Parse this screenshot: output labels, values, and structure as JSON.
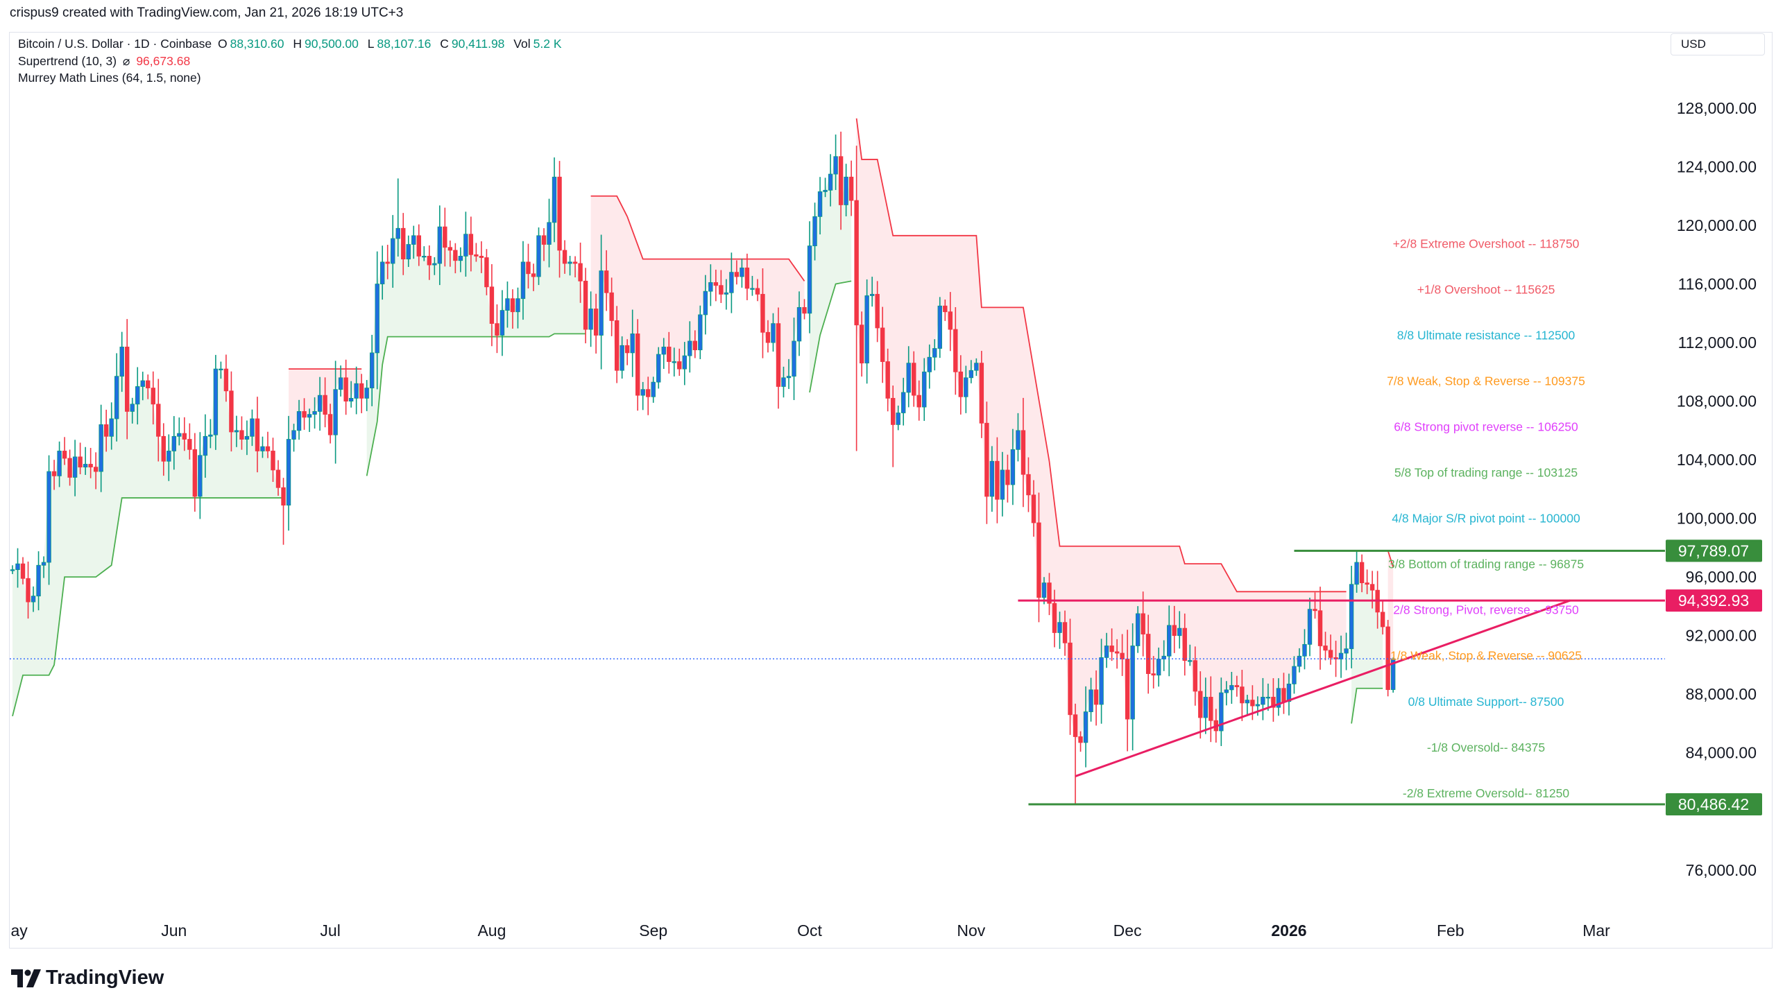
{
  "credit": "crispus9 created with TradingView.com, Jan 21, 2026 18:19 UTC+3",
  "legend": {
    "symbol": "Bitcoin / U.S. Dollar · 1D · Coinbase",
    "o_label": "O",
    "o_value": "88,310.60",
    "h_label": "H",
    "h_value": "90,500.00",
    "l_label": "L",
    "l_value": "88,107.16",
    "c_label": "C",
    "c_value": "90,411.98",
    "vol_label": "Vol",
    "vol_value": "5.2 K",
    "supertrend": "Supertrend (10, 3)",
    "supertrend_symbol": "⌀",
    "supertrend_value": "96,673.68",
    "murrey": "Murrey Math Lines (64, 1.5, none)"
  },
  "currency": "USD",
  "logo_text": "TradingView",
  "colors": {
    "up_body": "#1f6fe0",
    "up_wick": "#089981",
    "down": "#f23645",
    "supertrend_up": "#4caf50",
    "supertrend_down": "#f23645",
    "resistance_line": "#e91e63",
    "support_line": "#388e3c",
    "trendline": "#e91e63",
    "last_price_line": "#2962ff"
  },
  "chart_data": {
    "type": "candlestick",
    "symbol": "Bitcoin / U.S. Dollar",
    "interval": "1D",
    "ylim": [
      73000,
      131000
    ],
    "y_ticks": [
      "128,000.00",
      "124,000.00",
      "120,000.00",
      "116,000.00",
      "112,000.00",
      "108,000.00",
      "104,000.00",
      "100,000.00",
      "96,000.00",
      "92,000.00",
      "88,000.00",
      "84,000.00",
      "76,000.00"
    ],
    "x_ticks": [
      {
        "label": "May",
        "month": "2025-05"
      },
      {
        "label": "Jun",
        "month": "2025-06"
      },
      {
        "label": "Jul",
        "month": "2025-07"
      },
      {
        "label": "Aug",
        "month": "2025-08"
      },
      {
        "label": "Sep",
        "month": "2025-09"
      },
      {
        "label": "Oct",
        "month": "2025-10"
      },
      {
        "label": "Nov",
        "month": "2025-11"
      },
      {
        "label": "Dec",
        "month": "2025-12"
      },
      {
        "label": "2026",
        "month": "2026-01"
      },
      {
        "label": "Feb",
        "month": "2026-02"
      },
      {
        "label": "Mar",
        "month": "2026-03"
      }
    ],
    "candle_note": "daily closes; open = previous close",
    "months": [
      {
        "month": "2025-05",
        "closes": [
          96500,
          96900,
          95900,
          94300,
          94700,
          96800,
          97000,
          103200,
          102900,
          104600,
          104100,
          102800,
          104200,
          103500,
          103700,
          103500,
          103200,
          106400,
          105600,
          106800,
          109700,
          111700,
          107300,
          107800,
          109000,
          109400,
          108900,
          107800,
          105600,
          103900,
          104600
        ]
      },
      {
        "month": "2025-06",
        "closes": [
          105600,
          105800,
          105400,
          104700,
          101500,
          104300,
          105600,
          105700,
          110200,
          110200,
          108700,
          105900,
          106000,
          105400,
          105600,
          106800,
          104600,
          104900,
          104600,
          103300,
          102100,
          100900,
          105400,
          106000,
          107300,
          106900,
          107100,
          107300,
          108400,
          107100
        ]
      },
      {
        "month": "2025-07",
        "closes": [
          105700,
          108800,
          109600,
          108000,
          108200,
          109200,
          108200,
          108900,
          111300,
          116000,
          117500,
          117400,
          119100,
          119800,
          117700,
          118700,
          119300,
          117900,
          117900,
          117300,
          117400,
          119900,
          118500,
          118300,
          117600,
          117900,
          119400,
          118000,
          117900,
          117800,
          115800
        ]
      },
      {
        "month": "2025-08",
        "closes": [
          113300,
          112500,
          114200,
          115000,
          114100,
          115000,
          117500,
          116700,
          116500,
          119300,
          118700,
          120200,
          123300,
          118300,
          117400,
          117500,
          117400,
          116200,
          112900,
          114300,
          112500,
          116900,
          115400,
          113500,
          110100,
          111800,
          111300,
          112600,
          108400,
          108800,
          108300
        ]
      },
      {
        "month": "2025-09",
        "closes": [
          109300,
          111200,
          111700,
          110700,
          110700,
          110200,
          111100,
          112100,
          111500,
          113900,
          115500,
          116100,
          115900,
          115300,
          115400,
          116800,
          116500,
          117100,
          115700,
          115700,
          115300,
          112700,
          112000,
          113300,
          109000,
          109600,
          109700,
          112100,
          114400,
          114000
        ]
      },
      {
        "month": "2025-10",
        "closes": [
          118600,
          120600,
          122300,
          122400,
          123500,
          124700,
          121400,
          123300,
          121700,
          113200,
          110600,
          115200,
          115300,
          113000,
          110700,
          108200,
          106400,
          107200,
          108600,
          110600,
          108400,
          107600,
          110000,
          111000,
          111600,
          114500,
          114100,
          112900,
          110000,
          108300,
          109600
        ]
      },
      {
        "month": "2025-11",
        "closes": [
          110100,
          110600,
          106500,
          101500,
          103900,
          101300,
          103300,
          102300,
          104700,
          106000,
          103000,
          101600,
          99700,
          94600,
          95600,
          94200,
          92200,
          92900,
          91500,
          86600,
          85100,
          84700,
          86800,
          88300,
          87300,
          90500,
          91300,
          90900,
          90800,
          90400
        ]
      },
      {
        "month": "2025-12",
        "closes": [
          86300,
          91300,
          93500,
          92100,
          89400,
          89300,
          90400,
          90600,
          92700,
          92000,
          92500,
          90300,
          90300,
          88200,
          86400,
          87800,
          86200,
          85500,
          88100,
          88300,
          88600,
          88500,
          87400,
          87600,
          87200,
          87300,
          87800,
          87800,
          87100,
          88400,
          87500
        ]
      },
      {
        "month": "2026-01",
        "closes": [
          88700,
          89900,
          90600,
          91400,
          93800,
          93700,
          91300,
          91000,
          90500,
          90400,
          90800,
          91100,
          95500,
          97000,
          95600,
          95500,
          95100,
          93600,
          92600,
          88310.6,
          90411.98
        ]
      }
    ],
    "last_candle": {
      "date": "2026-01-21",
      "open": 88310.6,
      "high": 90500.0,
      "low": 88107.16,
      "close": 90411.98,
      "volume": "5.2 K"
    },
    "notable_extremes": [
      {
        "date": "2025-06-22",
        "low": 98200
      },
      {
        "date": "2025-07-14",
        "high": 123200
      },
      {
        "date": "2025-08-14",
        "high": 124400
      },
      {
        "date": "2025-10-06",
        "high": 126200
      },
      {
        "date": "2025-10-10",
        "low": 104600
      },
      {
        "date": "2025-10-17",
        "low": 103500
      },
      {
        "date": "2025-11-21",
        "low": 80486.42
      },
      {
        "date": "2026-01-14",
        "high": 97789.07
      }
    ],
    "supertrend": {
      "name": "Supertrend (10, 3)",
      "current": 96673.68,
      "segments": [
        {
          "dir": "up",
          "points": [
            [
              "2025-05-01",
              86500
            ],
            [
              "2025-05-03",
              89300
            ],
            [
              "2025-05-08",
              89300
            ],
            [
              "2025-05-09",
              90000
            ],
            [
              "2025-05-11",
              96000
            ],
            [
              "2025-05-17",
              96000
            ],
            [
              "2025-05-20",
              96800
            ],
            [
              "2025-05-22",
              101400
            ],
            [
              "2025-06-22",
              101400
            ]
          ]
        },
        {
          "dir": "down",
          "points": [
            [
              "2025-06-23",
              110200
            ],
            [
              "2025-07-07",
              110200
            ]
          ]
        },
        {
          "dir": "up",
          "points": [
            [
              "2025-07-08",
              102900
            ],
            [
              "2025-07-10",
              106600
            ],
            [
              "2025-07-11",
              110500
            ],
            [
              "2025-07-12",
              112400
            ],
            [
              "2025-08-12",
              112400
            ],
            [
              "2025-08-13",
              112600
            ],
            [
              "2025-08-19",
              112600
            ]
          ]
        },
        {
          "dir": "down",
          "points": [
            [
              "2025-08-20",
              122000
            ],
            [
              "2025-08-25",
              122000
            ],
            [
              "2025-08-27",
              120600
            ],
            [
              "2025-08-30",
              117700
            ],
            [
              "2025-09-27",
              117700
            ],
            [
              "2025-09-30",
              116200
            ]
          ]
        },
        {
          "dir": "up",
          "points": [
            [
              "2025-10-01",
              108600
            ],
            [
              "2025-10-03",
              112500
            ],
            [
              "2025-10-06",
              116000
            ],
            [
              "2025-10-09",
              116200
            ]
          ]
        },
        {
          "dir": "down",
          "points": [
            [
              "2025-10-10",
              127300
            ],
            [
              "2025-10-11",
              124500
            ],
            [
              "2025-10-14",
              124500
            ],
            [
              "2025-10-17",
              119300
            ],
            [
              "2025-11-02",
              119300
            ],
            [
              "2025-11-03",
              114400
            ],
            [
              "2025-11-11",
              114400
            ],
            [
              "2025-11-16",
              103900
            ],
            [
              "2025-11-18",
              98100
            ],
            [
              "2025-12-11",
              98100
            ],
            [
              "2025-12-12",
              96900
            ],
            [
              "2025-12-19",
              96900
            ],
            [
              "2025-12-22",
              95000
            ],
            [
              "2026-01-12",
              95000
            ]
          ]
        },
        {
          "dir": "up",
          "points": [
            [
              "2026-01-13",
              86000
            ],
            [
              "2026-01-14",
              88400
            ],
            [
              "2026-01-19",
              88400
            ]
          ]
        },
        {
          "dir": "down",
          "points": [
            [
              "2026-01-20",
              97800
            ],
            [
              "2026-01-21",
              96673.68
            ]
          ]
        }
      ]
    },
    "murrey_levels": [
      {
        "label": "+2/8 Extreme Overshoot --  118750",
        "price": 118750,
        "color": "#f05a67"
      },
      {
        "label": "+1/8 Overshoot --  115625",
        "price": 115625,
        "color": "#f05a67"
      },
      {
        "label": "8/8 Ultimate resistance --  112500",
        "price": 112500,
        "color": "#26b5d1"
      },
      {
        "label": "7/8 Weak, Stop & Reverse --  109375",
        "price": 109375,
        "color": "#ff9a1f"
      },
      {
        "label": "6/8 Strong pivot reverse --  106250",
        "price": 106250,
        "color": "#e040fb"
      },
      {
        "label": "5/8 Top of trading range --  103125",
        "price": 103125,
        "color": "#5cb25f"
      },
      {
        "label": "4/8 Major S/R pivot point --  100000",
        "price": 100000,
        "color": "#26b5d1"
      },
      {
        "label": "3/8 Bottom of trading range --  96875",
        "price": 96875,
        "color": "#5cb25f"
      },
      {
        "label": "2/8 Strong, Pivot, reverse --  93750",
        "price": 93750,
        "color": "#e040fb"
      },
      {
        "label": "1/8 Weak, Stop & Reverse --  90625",
        "price": 90625,
        "color": "#ff9a1f"
      },
      {
        "label": "0/8 Ultimate Support--  87500",
        "price": 87500,
        "color": "#26b5d1"
      },
      {
        "label": "-1/8 Oversold--  84375",
        "price": 84375,
        "color": "#5cb25f"
      },
      {
        "label": "-2/8 Extreme Oversold--  81250",
        "price": 81250,
        "color": "#5cb25f"
      }
    ],
    "horizontal_lines": [
      {
        "price": 97789.07,
        "tag": "97,789.07",
        "from": "2026-01-02",
        "color": "#388e3c"
      },
      {
        "price": 94392.93,
        "tag": "94,392.93",
        "from": "2025-11-10",
        "color": "#e91e63"
      },
      {
        "price": 80486.42,
        "tag": "80,486.42",
        "from": "2025-11-12",
        "color": "#388e3c"
      }
    ],
    "trendline": {
      "from": [
        "2025-11-21",
        82400
      ],
      "to": [
        "2026-02-24",
        94400
      ],
      "color": "#e91e63"
    },
    "last_price": 90411.98
  }
}
